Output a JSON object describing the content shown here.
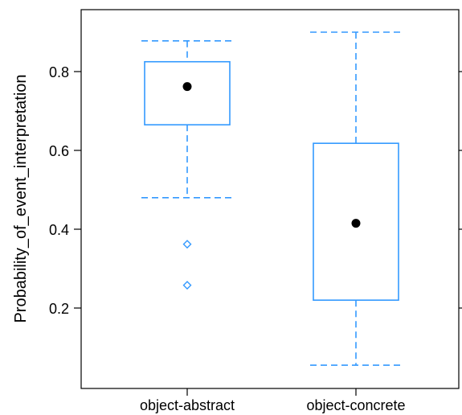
{
  "chart_data": {
    "type": "box",
    "ylabel": "Probability_of_event_interpretation",
    "xlabel": "",
    "title": "",
    "ylim": [
      0.0,
      0.98
    ],
    "yticks": [
      0.2,
      0.4,
      0.6,
      0.8
    ],
    "ytick_labels": [
      "0.2",
      "0.4",
      "0.6",
      "0.8"
    ],
    "grid": false,
    "categories": [
      "object-abstract",
      "object-concrete"
    ],
    "boxes": [
      {
        "category": "object-abstract",
        "whisker_low": 0.48,
        "q1": 0.665,
        "median": 0.762,
        "q3": 0.825,
        "whisker_high": 0.878,
        "outliers": [
          0.362,
          0.258
        ]
      },
      {
        "category": "object-concrete",
        "whisker_low": 0.055,
        "q1": 0.22,
        "median": 0.415,
        "q3": 0.618,
        "whisker_high": 0.9,
        "outliers": []
      }
    ],
    "box_color": "#3399ff",
    "median_marker_color": "#000000"
  }
}
